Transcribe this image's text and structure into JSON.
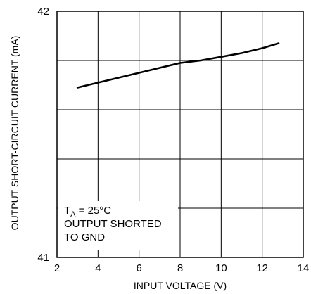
{
  "chart_data": {
    "type": "line",
    "xlabel": "INPUT VOLTAGE (V)",
    "ylabel": "OUTPUT SHORT-CIRCUIT CURRENT (mA)",
    "xlim": [
      2,
      14
    ],
    "ylim": [
      41,
      42
    ],
    "x_ticks": [
      "2",
      "4",
      "6",
      "8",
      "10",
      "12",
      "14"
    ],
    "y_ticks": [
      "41",
      "42"
    ],
    "grid": true,
    "series": [
      {
        "x": [
          3,
          4,
          5,
          6,
          7,
          8,
          9,
          10,
          11,
          12,
          12.8
        ],
        "y": [
          41.69,
          41.71,
          41.73,
          41.75,
          41.77,
          41.79,
          41.8,
          41.815,
          41.83,
          41.85,
          41.87
        ],
        "color": "#000000"
      }
    ],
    "annotation": {
      "ta_main": "T",
      "ta_sub": "A",
      "ta_rest": " = 25°C",
      "line2": "OUTPUT SHORTED",
      "line3": "TO GND"
    }
  }
}
